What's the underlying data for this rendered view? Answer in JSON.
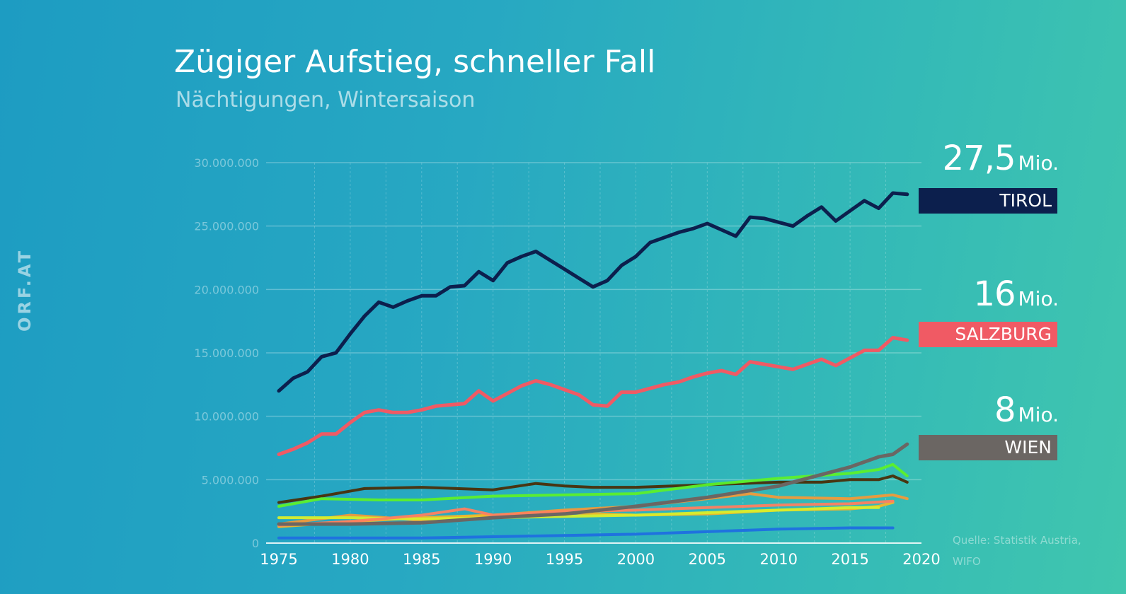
{
  "brand": "ORF.AT",
  "header": {
    "title": "Zügiger Aufstieg, schneller Fall",
    "subtitle": "Nächtigungen, Wintersaison"
  },
  "source_note": "Quelle: Statistik Austria,\nWIFO",
  "callouts": [
    {
      "value": "27,5",
      "unit": "Mio.",
      "label": "TIROL",
      "color": "#0c1f4d"
    },
    {
      "value": "16",
      "unit": "Mio.",
      "label": "SALZBURG",
      "color": "#f05a64"
    },
    {
      "value": "8",
      "unit": "Mio.",
      "label": "WIEN",
      "color": "#6b6663"
    }
  ],
  "chart_data": {
    "type": "line",
    "title": "Zügiger Aufstieg, schneller Fall",
    "subtitle": "Nächtigungen, Wintersaison",
    "xlabel": "",
    "ylabel": "",
    "xlim": [
      1975,
      2020
    ],
    "ylim": [
      0,
      30000000
    ],
    "x_ticks": [
      1975,
      1980,
      1985,
      1990,
      1995,
      2000,
      2005,
      2010,
      2015,
      2020
    ],
    "y_ticks": [
      0,
      5000000,
      10000000,
      15000000,
      20000000,
      25000000,
      30000000
    ],
    "y_tick_labels": [
      "0",
      "5.000.000",
      "10.000.000",
      "15.000.000",
      "20.000.000",
      "25.000.000",
      "30.000.000"
    ],
    "grid": true,
    "series": [
      {
        "name": "TIROL",
        "color": "#0c1f4d",
        "x": [
          1975,
          1976,
          1977,
          1978,
          1979,
          1980,
          1981,
          1982,
          1983,
          1984,
          1985,
          1986,
          1987,
          1988,
          1989,
          1990,
          1991,
          1992,
          1993,
          1994,
          1995,
          1996,
          1997,
          1998,
          1999,
          2000,
          2001,
          2002,
          2003,
          2004,
          2005,
          2006,
          2007,
          2008,
          2009,
          2010,
          2011,
          2012,
          2013,
          2014,
          2015,
          2016,
          2017,
          2018,
          2019
        ],
        "values": [
          12000000,
          13000000,
          13500000,
          14700000,
          15000000,
          16500000,
          17900000,
          19000000,
          18600000,
          19100000,
          19500000,
          19500000,
          20200000,
          20300000,
          21400000,
          20700000,
          22100000,
          22600000,
          23000000,
          22300000,
          21600000,
          20900000,
          20200000,
          20700000,
          21900000,
          22600000,
          23700000,
          24100000,
          24500000,
          24800000,
          25200000,
          24700000,
          24200000,
          25700000,
          25600000,
          25300000,
          25000000,
          25800000,
          26500000,
          25400000,
          26200000,
          27000000,
          26400000,
          27600000,
          27500000
        ]
      },
      {
        "name": "SALZBURG",
        "color": "#f05a64",
        "x": [
          1975,
          1976,
          1977,
          1978,
          1979,
          1980,
          1981,
          1982,
          1983,
          1984,
          1985,
          1986,
          1987,
          1988,
          1989,
          1990,
          1991,
          1992,
          1993,
          1994,
          1995,
          1996,
          1997,
          1998,
          1999,
          2000,
          2001,
          2002,
          2003,
          2004,
          2005,
          2006,
          2007,
          2008,
          2009,
          2010,
          2011,
          2012,
          2013,
          2014,
          2015,
          2016,
          2017,
          2018,
          2019
        ],
        "values": [
          7000000,
          7400000,
          7900000,
          8600000,
          8600000,
          9500000,
          10300000,
          10500000,
          10300000,
          10300000,
          10500000,
          10800000,
          10900000,
          11000000,
          12000000,
          11200000,
          11800000,
          12400000,
          12800000,
          12500000,
          12100000,
          11700000,
          10900000,
          10800000,
          11900000,
          11900000,
          12200000,
          12500000,
          12700000,
          13100000,
          13400000,
          13600000,
          13300000,
          14300000,
          14100000,
          13900000,
          13700000,
          14100000,
          14500000,
          14000000,
          14600000,
          15200000,
          15200000,
          16200000,
          16000000
        ]
      },
      {
        "name": "WIEN",
        "color": "#6b6663",
        "x": [
          1975,
          1980,
          1985,
          1990,
          1995,
          2000,
          2005,
          2010,
          2015,
          2017,
          2018,
          2019
        ],
        "values": [
          1500000,
          1500000,
          1600000,
          2000000,
          2300000,
          2900000,
          3600000,
          4500000,
          6000000,
          6800000,
          7000000,
          7800000
        ]
      },
      {
        "name": "",
        "color": "#4a2e08",
        "x": [
          1975,
          1978,
          1981,
          1985,
          1990,
          1993,
          1995,
          1997,
          2000,
          2005,
          2010,
          2013,
          2015,
          2017,
          2018,
          2019
        ],
        "values": [
          3200000,
          3700000,
          4300000,
          4400000,
          4200000,
          4700000,
          4500000,
          4400000,
          4400000,
          4600000,
          4800000,
          4800000,
          5000000,
          5000000,
          5300000,
          4800000
        ]
      },
      {
        "name": "",
        "color": "#5df02a",
        "x": [
          1975,
          1978,
          1982,
          1985,
          1990,
          1995,
          2000,
          2005,
          2010,
          2015,
          2017,
          2018,
          2019
        ],
        "values": [
          2900000,
          3500000,
          3400000,
          3400000,
          3700000,
          3800000,
          3900000,
          4600000,
          5100000,
          5500000,
          5800000,
          6200000,
          5300000
        ]
      },
      {
        "name": "",
        "color": "#f09a3a",
        "x": [
          1975,
          1980,
          1985,
          1990,
          1995,
          2000,
          2005,
          2008,
          2010,
          2015,
          2018,
          2019
        ],
        "values": [
          1500000,
          2200000,
          1800000,
          2200000,
          2600000,
          2900000,
          3500000,
          3900000,
          3600000,
          3500000,
          3800000,
          3500000
        ]
      },
      {
        "name": "",
        "color": "#f0b62a",
        "x": [
          1975,
          1980,
          1985,
          1990,
          1995,
          2000,
          2005,
          2010,
          2015,
          2017,
          2018
        ],
        "values": [
          1300000,
          1700000,
          2000000,
          2200000,
          2400000,
          2200000,
          2300000,
          2600000,
          2700000,
          2900000,
          3200000
        ]
      },
      {
        "name": "",
        "color": "#d8ee2c",
        "x": [
          1975,
          1980,
          1985,
          1990,
          1995,
          2000,
          2005,
          2010,
          2015,
          2017
        ],
        "values": [
          2000000,
          2000000,
          1900000,
          2000000,
          2100000,
          2200000,
          2400000,
          2600000,
          2800000,
          2800000
        ]
      },
      {
        "name": "",
        "color": "#ff8060",
        "x": [
          1975,
          1980,
          1985,
          1988,
          1990,
          1995,
          2000,
          2005,
          2010,
          2015,
          2018
        ],
        "values": [
          1400000,
          1700000,
          2200000,
          2700000,
          2200000,
          2500000,
          2600000,
          2800000,
          3000000,
          3100000,
          3300000
        ]
      },
      {
        "name": "",
        "color": "#1f6fe0",
        "x": [
          1975,
          1980,
          1985,
          1990,
          1995,
          2000,
          2005,
          2010,
          2015,
          2018
        ],
        "values": [
          400000,
          400000,
          400000,
          500000,
          600000,
          700000,
          900000,
          1100000,
          1200000,
          1200000
        ]
      }
    ]
  }
}
